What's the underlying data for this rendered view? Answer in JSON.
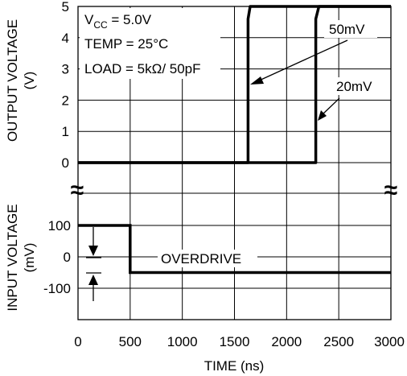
{
  "chart_data": {
    "type": "line",
    "title": "",
    "x_axis": {
      "label": "TIME (ns)",
      "range": [
        0,
        3000
      ],
      "ticks": [
        0,
        500,
        1000,
        1500,
        2000,
        2500,
        3000
      ],
      "tick_labels": [
        "0",
        "500",
        "1000",
        "1500",
        "2000",
        "2500",
        "3000"
      ]
    },
    "panels": [
      {
        "name": "output",
        "ylabel_line1": "OUTPUT VOLTAGE",
        "ylabel_line2": "(V)",
        "ylim": [
          0,
          5
        ],
        "ticks": [
          0,
          1,
          2,
          3,
          4,
          5
        ],
        "tick_labels": [
          "0",
          "1",
          "2",
          "3",
          "4",
          "5"
        ],
        "series": [
          {
            "name": "50mV",
            "x": [
              0,
              1630,
              1630,
              1650,
              3000
            ],
            "y": [
              0,
              0,
              4.6,
              5,
              5
            ]
          },
          {
            "name": "20mV",
            "x": [
              0,
              2280,
              2280,
              2310,
              3000
            ],
            "y": [
              0,
              0,
              4.6,
              5,
              5
            ]
          }
        ],
        "conditions": {
          "vcc_prefix": "V",
          "vcc_sub": "CC",
          "vcc_value": " = 5.0V",
          "temp": "TEMP = 25°C",
          "load": "LOAD = 5kΩ/ 50pF"
        }
      },
      {
        "name": "input",
        "ylabel_line1": "INPUT VOLTAGE",
        "ylabel_line2": "(mV)",
        "ylim": [
          -150,
          130
        ],
        "ticks": [
          100,
          0,
          -100
        ],
        "tick_labels": [
          "100",
          "0",
          "-100"
        ],
        "series": [
          {
            "name": "input",
            "x": [
              0,
              500,
              500,
              3000
            ],
            "y": [
              100,
              100,
              -50,
              -50
            ]
          }
        ],
        "annotation": "OVERDRIVE"
      }
    ],
    "grid": true,
    "axis_break_symbol": "≈"
  }
}
